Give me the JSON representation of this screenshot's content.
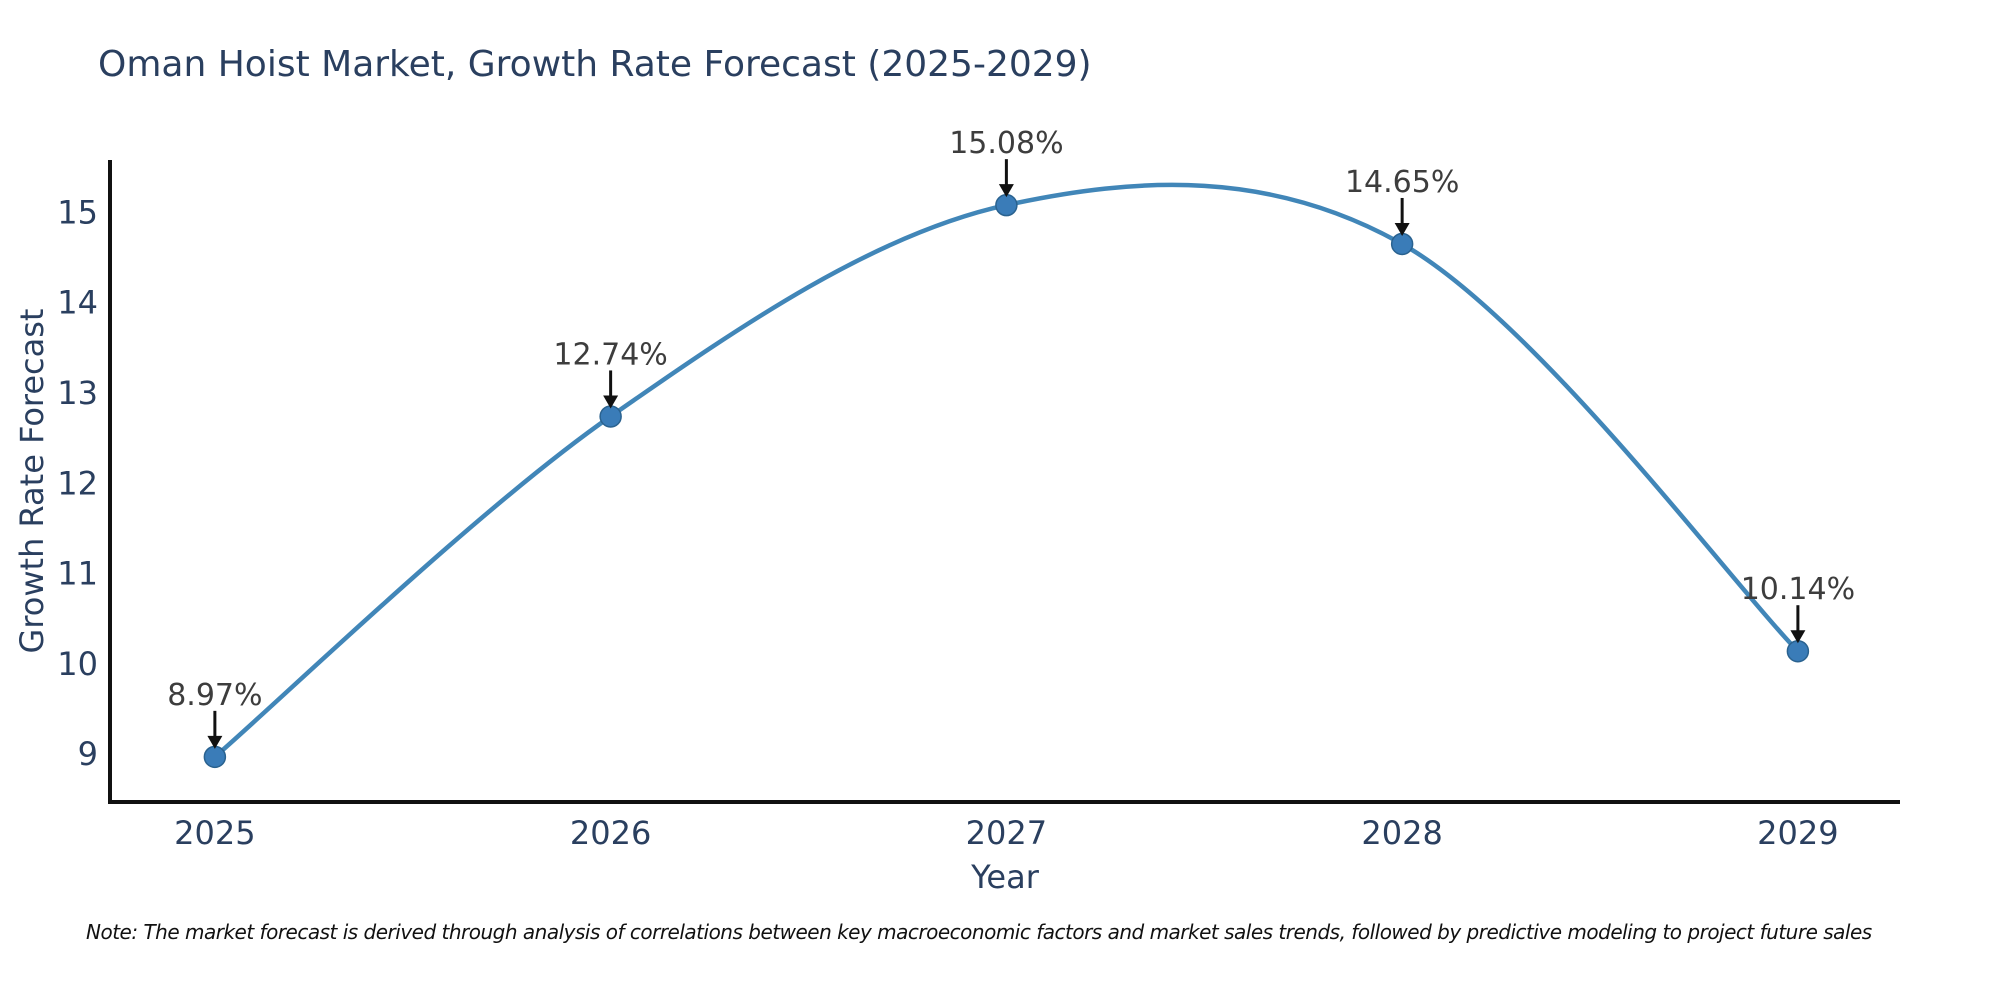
{
  "title": "Oman Hoist Market, Growth Rate Forecast (2025-2029)",
  "note": "Note: The market forecast is derived through analysis of correlations between key macroeconomic factors and market sales trends, followed by predictive modeling to project future sales",
  "chart_data": {
    "type": "line",
    "x": [
      2025,
      2026,
      2027,
      2028,
      2029
    ],
    "series": [
      {
        "name": "Growth Rate Forecast",
        "values": [
          8.97,
          12.74,
          15.08,
          14.65,
          10.14
        ]
      }
    ],
    "point_labels": [
      "8.97%",
      "12.74%",
      "15.08%",
      "14.65%",
      "10.14%"
    ],
    "title": "Oman Hoist Market, Growth Rate Forecast (2025-2029)",
    "xlabel": "Year",
    "ylabel": "Growth Rate Forecast",
    "xticks": [
      "2025",
      "2026",
      "2027",
      "2028",
      "2029"
    ],
    "yticks": [
      9,
      10,
      11,
      12,
      13,
      14,
      15
    ],
    "xlim": [
      2024.735,
      2029.258
    ],
    "ylim": [
      8.47,
      15.58
    ],
    "grid": false,
    "legend": false,
    "line_shape": "spline",
    "colors": {
      "line": "#4186b8",
      "marker": "#3a7cb8",
      "marker_edge": "#2a628f",
      "annotation_text": "#3d3d3d",
      "arrow": "#111111",
      "axis_text": "#2a3f5f",
      "spine": "#111111"
    }
  }
}
